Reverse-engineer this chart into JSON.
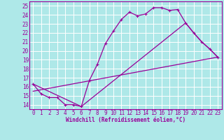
{
  "title": "",
  "xlabel": "Windchill (Refroidissement éolien,°C)",
  "bg_color": "#aee8e8",
  "grid_color": "#ffffff",
  "line_color": "#990099",
  "xlim": [
    -0.5,
    23.5
  ],
  "ylim": [
    13.5,
    25.5
  ],
  "xticks": [
    0,
    1,
    2,
    3,
    4,
    5,
    6,
    7,
    8,
    9,
    10,
    11,
    12,
    13,
    14,
    15,
    16,
    17,
    18,
    19,
    20,
    21,
    22,
    23
  ],
  "yticks": [
    14,
    15,
    16,
    17,
    18,
    19,
    20,
    21,
    22,
    23,
    24,
    25
  ],
  "curve1_x": [
    0,
    1,
    2,
    3,
    4,
    5,
    6,
    7,
    8,
    9,
    10,
    11,
    12,
    13,
    14,
    15,
    16,
    17,
    18,
    19,
    20,
    21,
    22,
    23
  ],
  "curve1_y": [
    16.3,
    15.2,
    14.8,
    14.8,
    14.0,
    14.0,
    13.8,
    16.7,
    18.5,
    20.8,
    22.2,
    23.5,
    24.3,
    23.9,
    24.1,
    24.8,
    24.8,
    24.5,
    24.6,
    23.1,
    22.0,
    21.0,
    20.2,
    19.3
  ],
  "curve2_x": [
    0,
    6,
    19,
    20,
    21,
    22,
    23
  ],
  "curve2_y": [
    16.3,
    13.8,
    23.1,
    22.0,
    21.0,
    20.2,
    19.3
  ],
  "curve3_x": [
    0,
    23
  ],
  "curve3_y": [
    15.5,
    19.3
  ],
  "xlabel_fontsize": 5.5,
  "tick_fontsize": 5.5,
  "lw": 0.9,
  "ms": 2.5
}
